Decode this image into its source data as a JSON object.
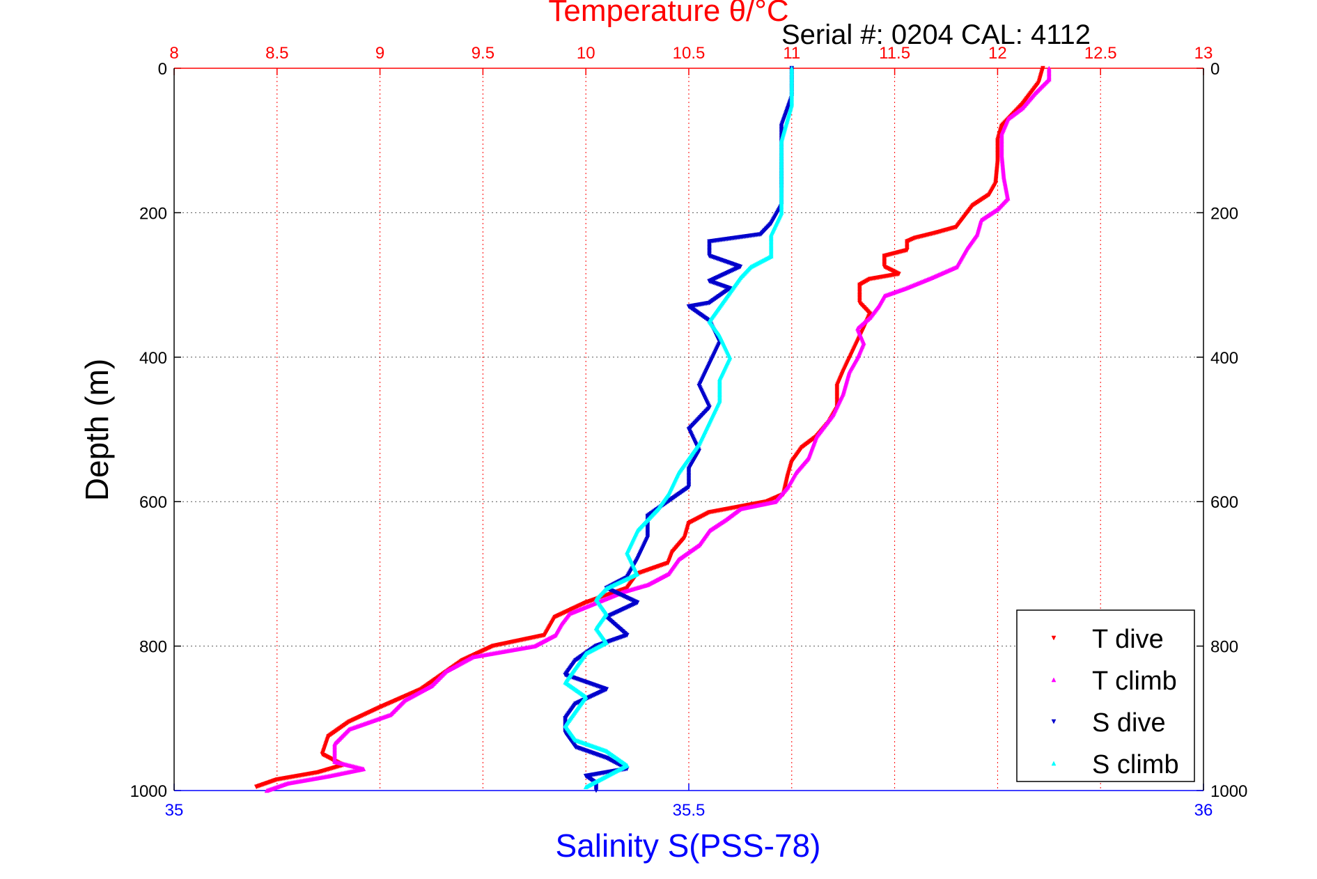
{
  "chart_data": {
    "type": "scatter",
    "title": "Temperature θ/°C",
    "subtitle": "Serial #: 0204  CAL: 4112",
    "ylabel": "Depth (m)",
    "xlabel": "Salinity S(PSS-78)",
    "ylim": [
      1000,
      0
    ],
    "y_ticks": [
      0,
      200,
      400,
      600,
      800,
      1000
    ],
    "temp_axis": {
      "range": [
        8,
        13
      ],
      "ticks": [
        "8",
        "8.5",
        "9",
        "9.5",
        "10",
        "10.5",
        "11",
        "11.5",
        "12",
        "12.5",
        "13"
      ]
    },
    "sal_axis": {
      "range": [
        35,
        36
      ],
      "ticks": [
        "35",
        "35.5",
        "36"
      ]
    },
    "grid": true,
    "legend_position": "bottom-right",
    "colors": {
      "temp_axis": "#ff0000",
      "sal_axis": "#0000ff",
      "t_dive": "#ff0000",
      "t_climb": "#ff00ff",
      "s_dive": "#0000cc",
      "s_climb": "#00ffff"
    },
    "series": [
      {
        "name": "T dive",
        "axis": "temp",
        "marker": "down-triangle",
        "color": "#ff0000",
        "points": [
          [
            12.22,
            0
          ],
          [
            12.2,
            20
          ],
          [
            12.16,
            35
          ],
          [
            12.12,
            50
          ],
          [
            12.07,
            65
          ],
          [
            12.02,
            80
          ],
          [
            12.0,
            100
          ],
          [
            12.0,
            130
          ],
          [
            11.99,
            160
          ],
          [
            11.96,
            175
          ],
          [
            11.88,
            190
          ],
          [
            11.84,
            205
          ],
          [
            11.8,
            220
          ],
          [
            11.7,
            228
          ],
          [
            11.6,
            235
          ],
          [
            11.56,
            240
          ],
          [
            11.56,
            252
          ],
          [
            11.45,
            260
          ],
          [
            11.45,
            275
          ],
          [
            11.52,
            285
          ],
          [
            11.38,
            292
          ],
          [
            11.33,
            300
          ],
          [
            11.33,
            325
          ],
          [
            11.38,
            340
          ],
          [
            11.35,
            360
          ],
          [
            11.3,
            390
          ],
          [
            11.25,
            420
          ],
          [
            11.22,
            440
          ],
          [
            11.22,
            470
          ],
          [
            11.18,
            490
          ],
          [
            11.12,
            510
          ],
          [
            11.05,
            525
          ],
          [
            11.0,
            545
          ],
          [
            10.98,
            565
          ],
          [
            10.96,
            590
          ],
          [
            10.88,
            600
          ],
          [
            10.6,
            615
          ],
          [
            10.5,
            630
          ],
          [
            10.48,
            650
          ],
          [
            10.42,
            670
          ],
          [
            10.4,
            685
          ],
          [
            10.25,
            700
          ],
          [
            10.2,
            720
          ],
          [
            10.0,
            740
          ],
          [
            9.85,
            760
          ],
          [
            9.8,
            785
          ],
          [
            9.55,
            800
          ],
          [
            9.4,
            820
          ],
          [
            9.3,
            840
          ],
          [
            9.2,
            860
          ],
          [
            9.0,
            885
          ],
          [
            8.85,
            905
          ],
          [
            8.75,
            925
          ],
          [
            8.72,
            950
          ],
          [
            8.82,
            965
          ],
          [
            8.7,
            975
          ],
          [
            8.5,
            985
          ],
          [
            8.4,
            995
          ]
        ]
      },
      {
        "name": "T climb",
        "axis": "temp",
        "marker": "up-triangle",
        "color": "#ff00ff",
        "points": [
          [
            12.25,
            0
          ],
          [
            12.25,
            15
          ],
          [
            12.18,
            35
          ],
          [
            12.12,
            55
          ],
          [
            12.05,
            70
          ],
          [
            12.02,
            90
          ],
          [
            12.02,
            120
          ],
          [
            12.03,
            150
          ],
          [
            12.05,
            180
          ],
          [
            12.0,
            195
          ],
          [
            11.92,
            210
          ],
          [
            11.9,
            230
          ],
          [
            11.85,
            250
          ],
          [
            11.8,
            275
          ],
          [
            11.68,
            290
          ],
          [
            11.55,
            305
          ],
          [
            11.45,
            315
          ],
          [
            11.42,
            330
          ],
          [
            11.38,
            345
          ],
          [
            11.32,
            360
          ],
          [
            11.35,
            380
          ],
          [
            11.32,
            400
          ],
          [
            11.28,
            420
          ],
          [
            11.25,
            450
          ],
          [
            11.2,
            480
          ],
          [
            11.12,
            510
          ],
          [
            11.08,
            540
          ],
          [
            11.02,
            560
          ],
          [
            10.98,
            580
          ],
          [
            10.92,
            600
          ],
          [
            10.75,
            610
          ],
          [
            10.68,
            625
          ],
          [
            10.6,
            640
          ],
          [
            10.55,
            660
          ],
          [
            10.45,
            680
          ],
          [
            10.4,
            700
          ],
          [
            10.3,
            715
          ],
          [
            10.18,
            725
          ],
          [
            10.05,
            740
          ],
          [
            9.92,
            755
          ],
          [
            9.88,
            770
          ],
          [
            9.85,
            785
          ],
          [
            9.75,
            800
          ],
          [
            9.45,
            815
          ],
          [
            9.32,
            835
          ],
          [
            9.25,
            855
          ],
          [
            9.12,
            875
          ],
          [
            9.05,
            895
          ],
          [
            8.85,
            915
          ],
          [
            8.78,
            935
          ],
          [
            8.78,
            960
          ],
          [
            8.92,
            970
          ],
          [
            8.75,
            980
          ],
          [
            8.55,
            990
          ],
          [
            8.45,
            1000
          ]
        ]
      },
      {
        "name": "S dive",
        "axis": "sal",
        "marker": "down-triangle",
        "color": "#0000cc",
        "points": [
          [
            35.6,
            0
          ],
          [
            35.6,
            40
          ],
          [
            35.59,
            80
          ],
          [
            35.59,
            120
          ],
          [
            35.59,
            160
          ],
          [
            35.59,
            190
          ],
          [
            35.58,
            215
          ],
          [
            35.57,
            230
          ],
          [
            35.52,
            240
          ],
          [
            35.52,
            260
          ],
          [
            35.55,
            275
          ],
          [
            35.52,
            295
          ],
          [
            35.54,
            305
          ],
          [
            35.52,
            325
          ],
          [
            35.5,
            330
          ],
          [
            35.52,
            350
          ],
          [
            35.53,
            380
          ],
          [
            35.52,
            410
          ],
          [
            35.51,
            440
          ],
          [
            35.52,
            470
          ],
          [
            35.5,
            500
          ],
          [
            35.51,
            530
          ],
          [
            35.5,
            555
          ],
          [
            35.5,
            580
          ],
          [
            35.48,
            600
          ],
          [
            35.46,
            620
          ],
          [
            35.46,
            650
          ],
          [
            35.45,
            680
          ],
          [
            35.44,
            705
          ],
          [
            35.42,
            720
          ],
          [
            35.45,
            740
          ],
          [
            35.42,
            760
          ],
          [
            35.44,
            785
          ],
          [
            35.41,
            800
          ],
          [
            35.39,
            820
          ],
          [
            35.38,
            840
          ],
          [
            35.42,
            860
          ],
          [
            35.39,
            880
          ],
          [
            35.38,
            900
          ],
          [
            35.38,
            920
          ],
          [
            35.39,
            940
          ],
          [
            35.42,
            955
          ],
          [
            35.44,
            970
          ],
          [
            35.4,
            980
          ],
          [
            35.41,
            990
          ],
          [
            35.41,
            1000
          ]
        ]
      },
      {
        "name": "S climb",
        "axis": "sal",
        "marker": "up-triangle",
        "color": "#00ffff",
        "points": [
          [
            35.6,
            0
          ],
          [
            35.6,
            50
          ],
          [
            35.59,
            100
          ],
          [
            35.59,
            150
          ],
          [
            35.59,
            200
          ],
          [
            35.58,
            230
          ],
          [
            35.58,
            260
          ],
          [
            35.56,
            275
          ],
          [
            35.55,
            290
          ],
          [
            35.54,
            310
          ],
          [
            35.53,
            330
          ],
          [
            35.52,
            350
          ],
          [
            35.53,
            370
          ],
          [
            35.54,
            400
          ],
          [
            35.53,
            430
          ],
          [
            35.53,
            460
          ],
          [
            35.52,
            490
          ],
          [
            35.51,
            520
          ],
          [
            35.5,
            540
          ],
          [
            35.49,
            560
          ],
          [
            35.48,
            590
          ],
          [
            35.47,
            610
          ],
          [
            35.45,
            640
          ],
          [
            35.44,
            670
          ],
          [
            35.45,
            700
          ],
          [
            35.42,
            720
          ],
          [
            35.41,
            735
          ],
          [
            35.42,
            755
          ],
          [
            35.41,
            775
          ],
          [
            35.42,
            795
          ],
          [
            35.4,
            810
          ],
          [
            35.39,
            830
          ],
          [
            35.38,
            850
          ],
          [
            35.4,
            870
          ],
          [
            35.39,
            890
          ],
          [
            35.38,
            910
          ],
          [
            35.39,
            930
          ],
          [
            35.42,
            945
          ],
          [
            35.44,
            965
          ],
          [
            35.42,
            980
          ],
          [
            35.4,
            995
          ]
        ]
      }
    ]
  }
}
